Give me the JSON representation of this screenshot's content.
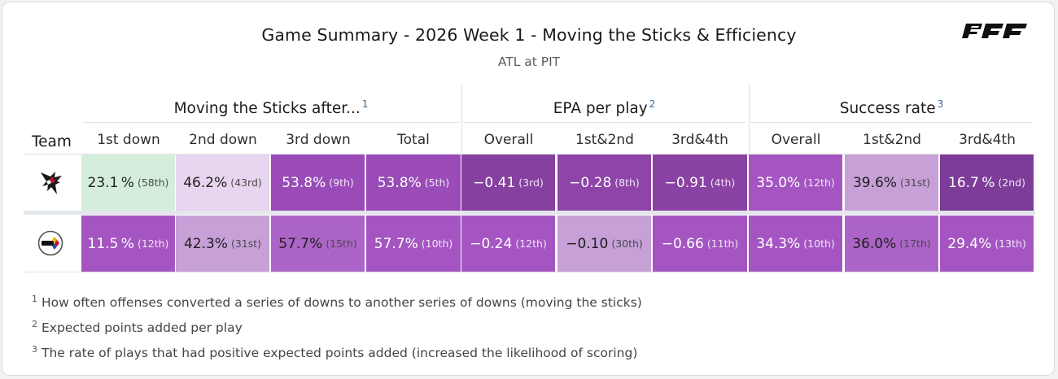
{
  "header": {
    "title": "Game Summary - 2026 Week 1 - Moving the Sticks & Efficiency",
    "subtitle": "ATL at PIT",
    "brand": "PFF"
  },
  "colors": {
    "rank_best": "#7d3c98",
    "rank_mid": "#a34fbf",
    "rank_low": "#c7a0d8",
    "rank_lowest": "#e8d5ef",
    "rank_green": "#d5eedc"
  },
  "chart_data": {
    "type": "table",
    "team_header": "Team",
    "groups": [
      {
        "label": "Moving the Sticks after...",
        "note": "1",
        "columns": [
          "1st down",
          "2nd down",
          "3rd down",
          "Total"
        ]
      },
      {
        "label": "EPA per play",
        "note": "2",
        "columns": [
          "Overall",
          "1st&2nd",
          "3rd&4th"
        ]
      },
      {
        "label": "Success rate",
        "note": "3",
        "columns": [
          "Overall",
          "1st&2nd",
          "3rd&4th"
        ]
      }
    ],
    "rows": [
      {
        "team": "ATL",
        "cells": [
          {
            "value": "23.1 %",
            "rank": "(58th)",
            "bg": "#d5eedc",
            "tone": "light"
          },
          {
            "value": "46.2%",
            "rank": "(43rd)",
            "bg": "#e8d5ef",
            "tone": "light"
          },
          {
            "value": "53.8%",
            "rank": "(9th)",
            "bg": "#9a4bb8",
            "tone": "dark"
          },
          {
            "value": "53.8%",
            "rank": "(5th)",
            "bg": "#9a4bb8",
            "tone": "dark"
          },
          {
            "value": "−0.41",
            "rank": "(3rd)",
            "bg": "#86409f",
            "tone": "dark"
          },
          {
            "value": "−0.28",
            "rank": "(8th)",
            "bg": "#8e44a8",
            "tone": "dark"
          },
          {
            "value": "−0.91",
            "rank": "(4th)",
            "bg": "#8a42a4",
            "tone": "dark"
          },
          {
            "value": "35.0%",
            "rank": "(12th)",
            "bg": "#a555c2",
            "tone": "dark"
          },
          {
            "value": "39.6%",
            "rank": "(31st)",
            "bg": "#c7a0d8",
            "tone": "light"
          },
          {
            "value": "16.7 %",
            "rank": "(2nd)",
            "bg": "#7d3c98",
            "tone": "dark"
          }
        ]
      },
      {
        "team": "PIT",
        "cells": [
          {
            "value": "11.5 %",
            "rank": "(12th)",
            "bg": "#a555c2",
            "tone": "dark"
          },
          {
            "value": "42.3%",
            "rank": "(31st)",
            "bg": "#c7a0d8",
            "tone": "light"
          },
          {
            "value": "57.7%",
            "rank": "(15th)",
            "bg": "#ad64c8",
            "tone": "light"
          },
          {
            "value": "57.7%",
            "rank": "(10th)",
            "bg": "#a555c2",
            "tone": "dark"
          },
          {
            "value": "−0.24",
            "rank": "(12th)",
            "bg": "#a555c2",
            "tone": "dark"
          },
          {
            "value": "−0.10",
            "rank": "(30th)",
            "bg": "#c7a0d8",
            "tone": "light"
          },
          {
            "value": "−0.66",
            "rank": "(11th)",
            "bg": "#a555c2",
            "tone": "dark"
          },
          {
            "value": "34.3%",
            "rank": "(10th)",
            "bg": "#a555c2",
            "tone": "dark"
          },
          {
            "value": "36.0%",
            "rank": "(17th)",
            "bg": "#ad64c8",
            "tone": "light"
          },
          {
            "value": "29.4%",
            "rank": "(13th)",
            "bg": "#a555c2",
            "tone": "dark"
          }
        ]
      }
    ]
  },
  "footnotes": [
    {
      "mark": "1",
      "text": "How often offenses converted a series of downs to another series of downs (moving the sticks)"
    },
    {
      "mark": "2",
      "text": "Expected points added per play"
    },
    {
      "mark": "3",
      "text": "The rate of plays that had positive expected points added (increased the likelihood of scoring)"
    }
  ]
}
